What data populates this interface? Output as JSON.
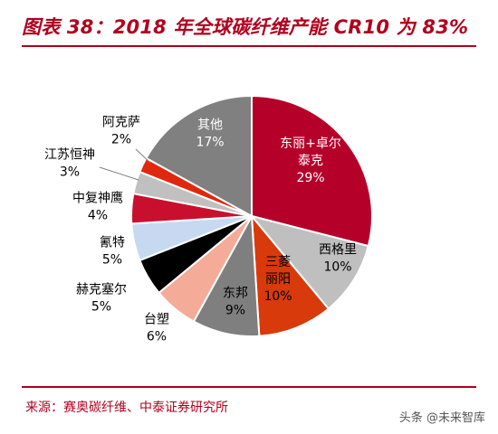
{
  "header": {
    "title": "图表 38：2018 年全球碳纤维产能 CR10 为 83%"
  },
  "footer": {
    "source": "来源：赛奥碳纤维、中泰证券研究所",
    "watermark": "头条 @未来智库"
  },
  "chart_data": {
    "type": "pie",
    "title": "图表 38：2018 年全球碳纤维产能 CR10 为 83%",
    "start": "12 o'clock, clockwise",
    "slices": [
      {
        "name": "东丽+卓尔泰克",
        "value": 29,
        "label": "29%",
        "color": "#b5002a",
        "name_lines": [
          "东丽+卓尔",
          "泰克"
        ]
      },
      {
        "name": "西格里",
        "value": 10,
        "label": "10%",
        "color": "#bfbfbf",
        "name_lines": [
          "西格里"
        ]
      },
      {
        "name": "三菱丽阳",
        "value": 10,
        "label": "10%",
        "color": "#d83a0c",
        "name_lines": [
          "三菱",
          "丽阳"
        ]
      },
      {
        "name": "东邦",
        "value": 9,
        "label": "9%",
        "color": "#7f7f7f",
        "name_lines": [
          "东邦"
        ]
      },
      {
        "name": "台塑",
        "value": 6,
        "label": "6%",
        "color": "#f4ab98",
        "name_lines": [
          "台塑"
        ]
      },
      {
        "name": "赫克塞尔",
        "value": 5,
        "label": "5%",
        "color": "#000000",
        "name_lines": [
          "赫克塞尔"
        ]
      },
      {
        "name": "氰特",
        "value": 5,
        "label": "5%",
        "color": "#c6d9f1",
        "name_lines": [
          "氰特"
        ]
      },
      {
        "name": "中复神鹰",
        "value": 4,
        "label": "4%",
        "color": "#c8102e",
        "name_lines": [
          "中复神鹰"
        ]
      },
      {
        "name": "江苏恒神",
        "value": 3,
        "label": "3%",
        "color": "#c0c0c0",
        "name_lines": [
          "江苏恒神"
        ]
      },
      {
        "name": "阿克萨",
        "value": 2,
        "label": "2%",
        "color": "#e0280f",
        "name_lines": [
          "阿克萨"
        ]
      },
      {
        "name": "其他",
        "value": 17,
        "label": "17%",
        "color": "#808080",
        "name_lines": [
          "其他"
        ]
      }
    ]
  }
}
